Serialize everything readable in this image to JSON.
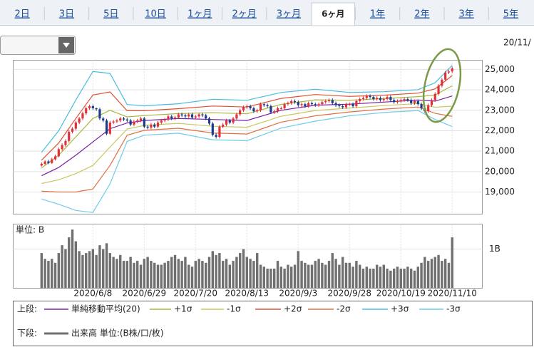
{
  "tabs": {
    "items": [
      "2日",
      "3日",
      "5日",
      "10日",
      "1ヶ月",
      "2ヶ月",
      "3ヶ月",
      "6ヶ月",
      "1年",
      "2年",
      "3年",
      "5年"
    ],
    "selected": 7
  },
  "header": {
    "date": "20/11/"
  },
  "chart_data": {
    "type": "candlestick",
    "xlim": [
      -8.3,
      128.8
    ],
    "xticks": [
      {
        "value": 15,
        "label": "2020/6/8"
      },
      {
        "value": 30,
        "label": "2020/6/29"
      },
      {
        "value": 45,
        "label": "2020/7/20"
      },
      {
        "value": 60,
        "label": "2020/8/13"
      },
      {
        "value": 75,
        "label": "2020/9/3"
      },
      {
        "value": 90,
        "label": "2020/9/28"
      },
      {
        "value": 105,
        "label": "2020/10/19"
      },
      {
        "value": 120,
        "label": "2020/11/10"
      }
    ],
    "ylim": [
      17920,
      25450
    ],
    "yticks": [
      {
        "value": 19000,
        "label": "19,000"
      },
      {
        "value": 20000,
        "label": "20,000"
      },
      {
        "value": 21000,
        "label": "21,000"
      },
      {
        "value": 22000,
        "label": "22,000"
      },
      {
        "value": 23000,
        "label": "23,000"
      },
      {
        "value": 24000,
        "label": "24,000"
      },
      {
        "value": 25000,
        "label": "25,000"
      }
    ],
    "grid": true,
    "up_color": "#e0303a",
    "down_color": "#1a3a8a",
    "ohlc": [
      [
        20300,
        20450,
        20250,
        20380
      ],
      [
        20380,
        20560,
        20320,
        20500
      ],
      [
        20500,
        20580,
        20360,
        20420
      ],
      [
        20420,
        20680,
        20380,
        20600
      ],
      [
        20600,
        20830,
        20540,
        20750
      ],
      [
        20750,
        21180,
        20700,
        21100
      ],
      [
        21100,
        21380,
        21020,
        21300
      ],
      [
        21300,
        21580,
        21220,
        21500
      ],
      [
        21500,
        22030,
        21420,
        21950
      ],
      [
        21950,
        22180,
        21870,
        22100
      ],
      [
        22100,
        22480,
        22020,
        22400
      ],
      [
        22400,
        22680,
        22320,
        22600
      ],
      [
        22600,
        22930,
        22520,
        22850
      ],
      [
        22850,
        23180,
        22770,
        23100
      ],
      [
        23100,
        23280,
        23020,
        23200
      ],
      [
        23200,
        23280,
        23020,
        23100
      ],
      [
        23100,
        23130,
        22970,
        23050
      ],
      [
        23050,
        23130,
        22520,
        22600
      ],
      [
        22600,
        22680,
        22420,
        22500
      ],
      [
        22500,
        22580,
        21780,
        21850
      ],
      [
        21850,
        22480,
        21800,
        22400
      ],
      [
        22400,
        22530,
        22320,
        22450
      ],
      [
        22450,
        22580,
        22370,
        22500
      ],
      [
        22500,
        22680,
        22420,
        22600
      ],
      [
        22600,
        22680,
        22470,
        22550
      ],
      [
        22550,
        22630,
        22420,
        22500
      ],
      [
        22500,
        22580,
        22220,
        22300
      ],
      [
        22300,
        22530,
        22220,
        22450
      ],
      [
        22450,
        22580,
        22370,
        22500
      ],
      [
        22500,
        22680,
        22420,
        22600
      ],
      [
        22600,
        22680,
        22120,
        22200
      ],
      [
        22200,
        22280,
        22070,
        22150
      ],
      [
        22150,
        22380,
        22070,
        22300
      ],
      [
        22300,
        22380,
        22120,
        22200
      ],
      [
        22200,
        22480,
        22120,
        22400
      ],
      [
        22400,
        22580,
        22320,
        22500
      ],
      [
        22500,
        22630,
        22420,
        22550
      ],
      [
        22550,
        22780,
        22470,
        22700
      ],
      [
        22700,
        22780,
        22520,
        22600
      ],
      [
        22600,
        22730,
        22520,
        22650
      ],
      [
        22650,
        22880,
        22570,
        22800
      ],
      [
        22800,
        22880,
        22670,
        22750
      ],
      [
        22750,
        22830,
        22620,
        22700
      ],
      [
        22700,
        22880,
        22620,
        22800
      ],
      [
        22800,
        22880,
        22570,
        22650
      ],
      [
        22650,
        22780,
        22570,
        22700
      ],
      [
        22700,
        22880,
        22620,
        22800
      ],
      [
        22800,
        22880,
        22670,
        22750
      ],
      [
        22750,
        22830,
        22520,
        22600
      ],
      [
        22600,
        22680,
        22270,
        22350
      ],
      [
        22350,
        22430,
        21720,
        21800
      ],
      [
        21800,
        21880,
        21620,
        21700
      ],
      [
        21700,
        22280,
        21620,
        22200
      ],
      [
        22200,
        22380,
        22120,
        22300
      ],
      [
        22300,
        22580,
        22220,
        22500
      ],
      [
        22500,
        22580,
        22320,
        22400
      ],
      [
        22400,
        22680,
        22320,
        22600
      ],
      [
        22600,
        22880,
        22520,
        22800
      ],
      [
        22800,
        23080,
        22720,
        23000
      ],
      [
        23000,
        23230,
        22920,
        23150
      ],
      [
        23150,
        23280,
        23070,
        23200
      ],
      [
        23200,
        23280,
        23020,
        23100
      ],
      [
        23100,
        23180,
        22870,
        22950
      ],
      [
        22950,
        23080,
        22870,
        23000
      ],
      [
        23000,
        23380,
        22920,
        23300
      ],
      [
        23300,
        23380,
        23170,
        23250
      ],
      [
        23250,
        23330,
        23120,
        23200
      ],
      [
        23200,
        23280,
        22820,
        22900
      ],
      [
        22900,
        23030,
        22820,
        22950
      ],
      [
        22950,
        23180,
        22870,
        23100
      ],
      [
        23100,
        23180,
        23020,
        23100
      ],
      [
        23100,
        23380,
        23020,
        23300
      ],
      [
        23300,
        23430,
        23220,
        23350
      ],
      [
        23350,
        23530,
        23270,
        23450
      ],
      [
        23450,
        23530,
        23320,
        23400
      ],
      [
        23400,
        23480,
        23170,
        23250
      ],
      [
        23250,
        23380,
        23170,
        23300
      ],
      [
        23300,
        23380,
        23120,
        23200
      ],
      [
        23200,
        23430,
        23120,
        23350
      ],
      [
        23350,
        23430,
        23220,
        23300
      ],
      [
        23300,
        23380,
        23170,
        23250
      ],
      [
        23250,
        23380,
        23170,
        23300
      ],
      [
        23300,
        23480,
        23220,
        23400
      ],
      [
        23400,
        23530,
        23320,
        23450
      ],
      [
        23450,
        23580,
        23370,
        23500
      ],
      [
        23500,
        23580,
        23270,
        23350
      ],
      [
        23350,
        23430,
        23170,
        23250
      ],
      [
        23250,
        23330,
        23120,
        23200
      ],
      [
        23200,
        23280,
        23070,
        23150
      ],
      [
        23150,
        23380,
        23070,
        23300
      ],
      [
        23300,
        23380,
        23220,
        23300
      ],
      [
        23300,
        23380,
        23120,
        23200
      ],
      [
        23200,
        23530,
        23120,
        23450
      ],
      [
        23450,
        23630,
        23370,
        23550
      ],
      [
        23550,
        23680,
        23470,
        23600
      ],
      [
        23600,
        23780,
        23520,
        23700
      ],
      [
        23700,
        23780,
        23570,
        23650
      ],
      [
        23650,
        23730,
        23470,
        23550
      ],
      [
        23550,
        23680,
        23470,
        23600
      ],
      [
        23600,
        23680,
        23420,
        23500
      ],
      [
        23500,
        23630,
        23420,
        23550
      ],
      [
        23550,
        23730,
        23470,
        23650
      ],
      [
        23650,
        23730,
        23420,
        23500
      ],
      [
        23500,
        23580,
        23320,
        23400
      ],
      [
        23400,
        23530,
        23320,
        23450
      ],
      [
        23450,
        23580,
        23370,
        23500
      ],
      [
        23500,
        23630,
        23420,
        23550
      ],
      [
        23550,
        23630,
        23420,
        23500
      ],
      [
        23500,
        23580,
        23270,
        23350
      ],
      [
        23350,
        23530,
        23270,
        23450
      ],
      [
        23450,
        23530,
        23220,
        23300
      ],
      [
        23300,
        23380,
        23020,
        23100
      ],
      [
        23100,
        23180,
        22870,
        22950
      ],
      [
        22950,
        23330,
        22870,
        23250
      ],
      [
        23250,
        23580,
        23170,
        23500
      ],
      [
        23500,
        23880,
        23420,
        23800
      ],
      [
        23800,
        24280,
        23720,
        24200
      ],
      [
        24200,
        24580,
        24120,
        24500
      ],
      [
        24500,
        24930,
        24420,
        24850
      ],
      [
        24850,
        24980,
        24770,
        24900
      ],
      [
        24900,
        25130,
        24820,
        25050
      ]
    ],
    "bands": {
      "x": [
        0,
        5,
        10,
        15,
        20,
        25,
        30,
        40,
        50,
        60,
        70,
        80,
        90,
        100,
        110,
        115,
        120
      ],
      "series": [
        {
          "name": "単純移動平均(20)",
          "color": "#7a1fa2",
          "values": [
            19800,
            20200,
            20800,
            21450,
            22100,
            22380,
            22500,
            22600,
            22550,
            22500,
            23000,
            23250,
            23300,
            23400,
            23500,
            23450,
            23700
          ]
        },
        {
          "name": "+1σ",
          "color": "#a8b83a",
          "values": [
            20180,
            20800,
            21700,
            22600,
            23000,
            22680,
            22740,
            22840,
            22880,
            22830,
            23290,
            23510,
            23490,
            23570,
            23670,
            23750,
            24200
          ]
        },
        {
          "name": "-1σ",
          "color": "#c8c860",
          "values": [
            19420,
            19600,
            19900,
            20300,
            21200,
            22080,
            22260,
            22360,
            22220,
            22170,
            22710,
            22990,
            23110,
            23230,
            23330,
            23150,
            23200
          ]
        },
        {
          "name": "+2σ",
          "color": "#e05030",
          "values": [
            20560,
            21400,
            22600,
            23750,
            23900,
            22980,
            22980,
            23080,
            23210,
            23160,
            23580,
            23770,
            23680,
            23740,
            23840,
            24050,
            24700
          ]
        },
        {
          "name": "-2σ",
          "color": "#e07040",
          "values": [
            19040,
            19000,
            19000,
            19150,
            20300,
            21780,
            22020,
            22120,
            21890,
            21840,
            22420,
            22730,
            22920,
            23060,
            23160,
            22850,
            22700
          ]
        },
        {
          "name": "+3σ",
          "color": "#48bde0",
          "values": [
            20940,
            22000,
            23500,
            24900,
            24800,
            23280,
            23220,
            23320,
            23540,
            23490,
            23870,
            24030,
            23870,
            23910,
            24010,
            24350,
            25200
          ]
        },
        {
          "name": "-3σ",
          "color": "#70cce8",
          "values": [
            18660,
            18400,
            18100,
            18000,
            19400,
            21480,
            21780,
            21880,
            21560,
            21510,
            22130,
            22470,
            22730,
            22890,
            22990,
            22550,
            22200
          ]
        }
      ]
    },
    "volume": {
      "label": "単位: B",
      "name": "出来高 単位:(B株/口/枚)",
      "color": "#707070",
      "ylim": [
        0,
        1.64
      ],
      "yticks": [
        {
          "value": 1,
          "label": "1B"
        }
      ],
      "values": [
        0.9,
        0.75,
        0.7,
        0.75,
        0.65,
        0.9,
        1.1,
        1.0,
        1.3,
        1.5,
        1.2,
        0.95,
        0.85,
        0.9,
        0.95,
        1.0,
        0.85,
        1.1,
        1.0,
        1.15,
        0.9,
        0.8,
        0.75,
        0.85,
        0.7,
        0.7,
        0.8,
        0.65,
        0.7,
        0.6,
        0.75,
        0.8,
        0.7,
        0.65,
        0.6,
        0.6,
        0.65,
        0.7,
        0.8,
        0.85,
        0.75,
        0.7,
        0.8,
        0.6,
        0.55,
        0.7,
        0.75,
        0.7,
        0.65,
        0.8,
        0.95,
        0.85,
        0.9,
        0.7,
        0.75,
        0.6,
        0.7,
        0.8,
        0.9,
        1.0,
        0.8,
        0.75,
        0.7,
        0.9,
        0.6,
        0.55,
        0.5,
        0.5,
        0.5,
        0.7,
        0.55,
        0.5,
        0.6,
        0.55,
        0.6,
        0.95,
        0.7,
        0.65,
        0.6,
        0.6,
        0.7,
        0.75,
        0.65,
        0.6,
        0.7,
        0.9,
        0.75,
        0.6,
        0.8,
        0.65,
        0.65,
        0.55,
        0.7,
        0.6,
        0.5,
        0.55,
        0.5,
        0.5,
        0.6,
        0.55,
        0.6,
        0.5,
        0.45,
        0.5,
        0.55,
        0.5,
        0.5,
        0.55,
        0.5,
        0.45,
        0.55,
        0.65,
        0.8,
        0.7,
        0.75,
        0.8,
        0.85,
        0.7,
        0.75,
        0.65,
        1.3
      ]
    },
    "legend": {
      "upper": "上段:",
      "lower": "下段:"
    }
  }
}
